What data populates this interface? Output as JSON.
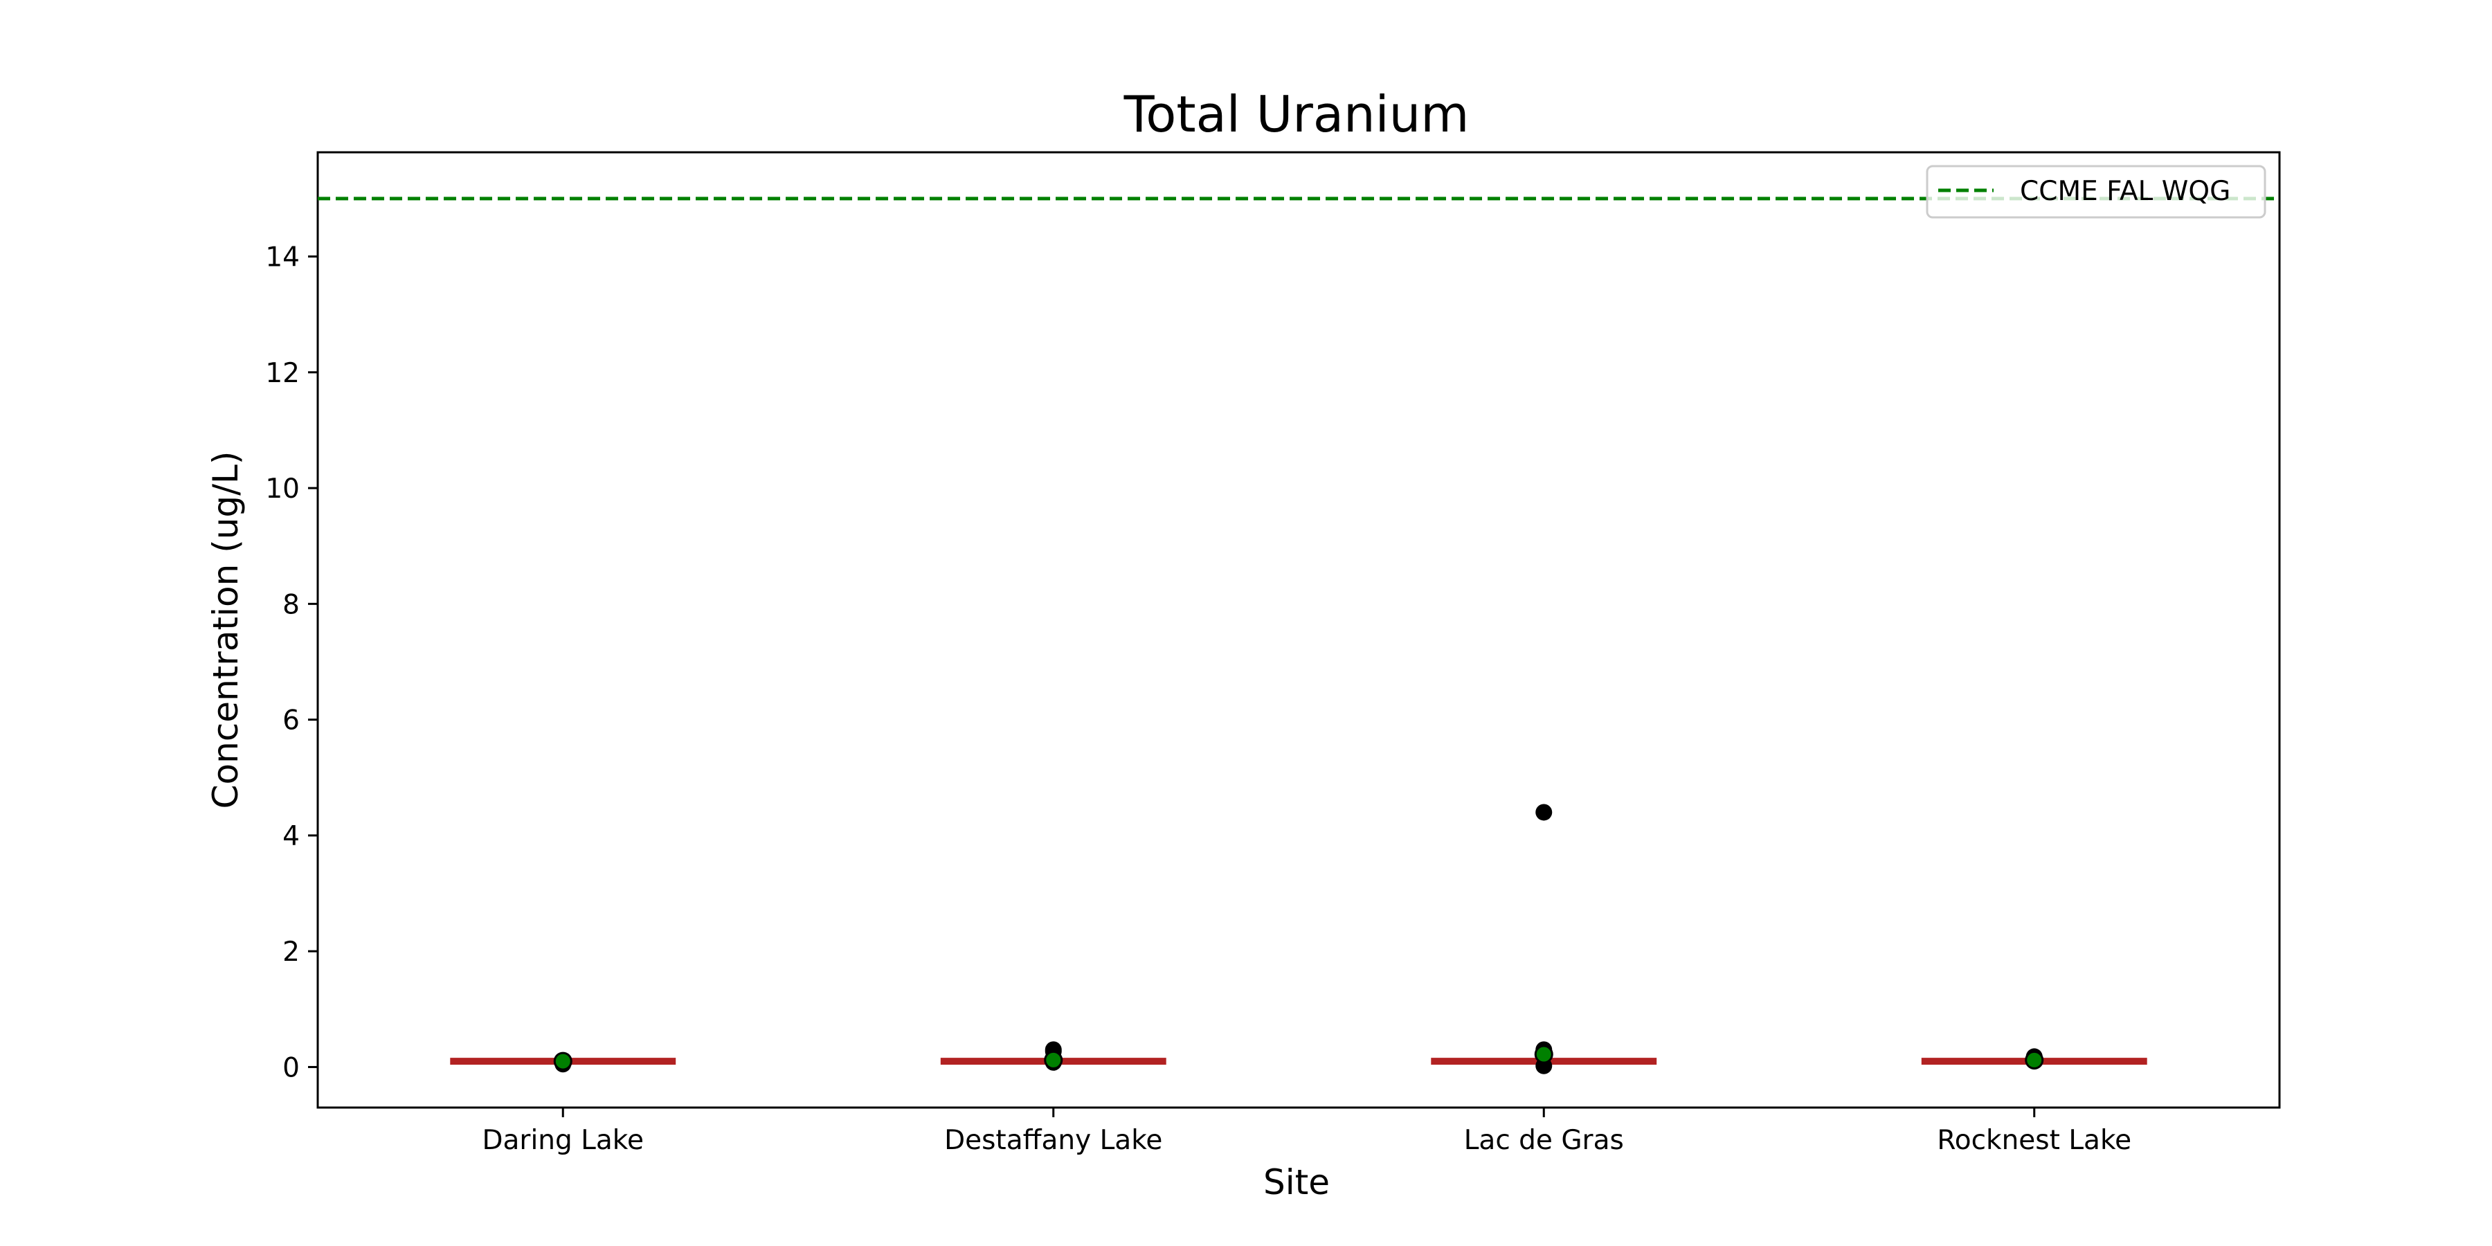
{
  "chart_data": {
    "type": "box",
    "title": "Total Uranium",
    "xlabel": "Site",
    "ylabel": "Concentration (ug/L)",
    "ylim": [
      -0.7,
      15.8
    ],
    "yticks": [
      0,
      2,
      4,
      6,
      8,
      10,
      12,
      14
    ],
    "categories": [
      "Daring Lake",
      "Destaffany Lake",
      "Lac de Gras",
      "Rocknest Lake"
    ],
    "grid": false,
    "legend": {
      "position": "top-right",
      "entries": [
        {
          "label": "CCME FAL WQG",
          "style": "dashed",
          "color": "#008000"
        }
      ]
    },
    "guideline": {
      "name": "CCME FAL WQG",
      "value": 15,
      "color": "#008000",
      "style": "dashed"
    },
    "median_color": "#b22222",
    "mean_color": "#008000",
    "outlier_color": "#000000",
    "groups": [
      {
        "site": "Daring Lake",
        "median": 0.1,
        "mean": 0.1,
        "outliers": [
          0.05,
          0.1
        ]
      },
      {
        "site": "Destaffany Lake",
        "median": 0.1,
        "mean": 0.12,
        "outliers": [
          0.08,
          0.27,
          0.3
        ]
      },
      {
        "site": "Lac de Gras",
        "median": 0.1,
        "mean": 0.22,
        "outliers": [
          0.02,
          0.25,
          0.3,
          4.4
        ]
      },
      {
        "site": "Rocknest Lake",
        "median": 0.1,
        "mean": 0.12,
        "outliers": [
          0.1,
          0.18
        ]
      }
    ]
  }
}
